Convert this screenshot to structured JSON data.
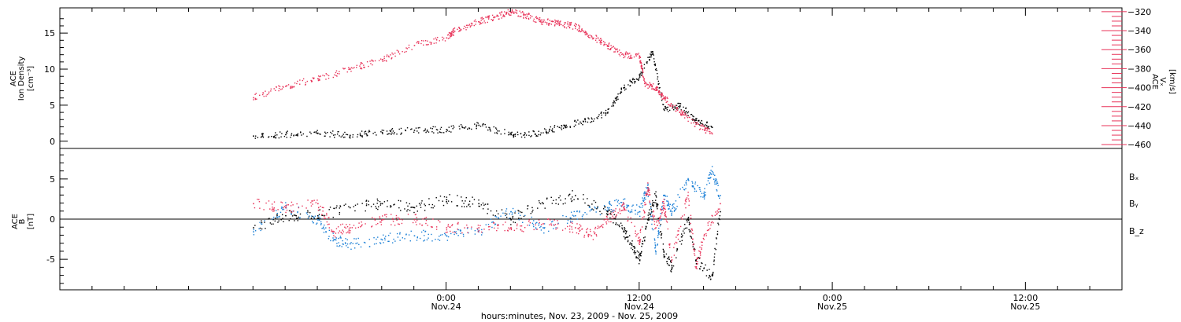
{
  "colors": {
    "black": "#000000",
    "pink": "#e8345a",
    "blue": "#1a7fd6"
  },
  "chart_data": [
    {
      "type": "scatter",
      "panel": "top",
      "left_axis": {
        "title_lines": [
          "ACE",
          "Ion Density"
        ],
        "unit": "[cm⁻³]",
        "ticks": [
          0,
          5,
          10,
          15
        ],
        "ylim": [
          -1,
          18.5
        ]
      },
      "right_axis": {
        "title_lines": [
          "ACE"
        ],
        "label": "Vₓ",
        "unit": "[km/s]",
        "ticks": [
          -320,
          -340,
          -360,
          -380,
          -400,
          -420,
          -440,
          -460
        ],
        "ylim": [
          -464,
          -316
        ],
        "color": "#e8345a"
      },
      "series": [
        {
          "axis": "left",
          "color": "#000000",
          "values": [
            [
              -12,
              0.8
            ],
            [
              -10,
              1.0
            ],
            [
              -8,
              1.2
            ],
            [
              -6,
              0.9
            ],
            [
              -4,
              1.3
            ],
            [
              -2,
              1.6
            ],
            [
              0,
              1.7
            ],
            [
              2,
              2.3
            ],
            [
              4,
              1.0
            ],
            [
              5.5,
              1.1
            ],
            [
              7,
              2.0
            ],
            [
              8.5,
              2.8
            ],
            [
              10,
              4.0
            ],
            [
              11,
              7.5
            ],
            [
              12,
              9.0
            ],
            [
              12.8,
              12.5
            ],
            [
              13.5,
              4.5
            ],
            [
              14.5,
              5.0
            ],
            [
              15.5,
              3.0
            ],
            [
              16.5,
              2.0
            ]
          ]
        },
        {
          "axis": "right",
          "color": "#e8345a",
          "values": [
            [
              -12,
              -410
            ],
            [
              -10,
              -398
            ],
            [
              -8,
              -390
            ],
            [
              -6,
              -380
            ],
            [
              -4,
              -370
            ],
            [
              -2,
              -355
            ],
            [
              0,
              -347
            ],
            [
              0.5,
              -340
            ],
            [
              2,
              -330
            ],
            [
              3,
              -325
            ],
            [
              4,
              -320
            ],
            [
              5,
              -324
            ],
            [
              6,
              -330
            ],
            [
              7,
              -332
            ],
            [
              8,
              -335
            ],
            [
              9,
              -345
            ],
            [
              10,
              -355
            ],
            [
              11,
              -365
            ],
            [
              12,
              -367
            ],
            [
              12.3,
              -395
            ],
            [
              13,
              -400
            ],
            [
              13.5,
              -410
            ],
            [
              14.5,
              -425
            ],
            [
              15.5,
              -438
            ],
            [
              16.5,
              -448
            ]
          ]
        }
      ]
    },
    {
      "type": "scatter",
      "panel": "bottom",
      "left_axis": {
        "title_lines": [
          "ACE",
          "B"
        ],
        "unit": "[nT]",
        "ticks": [
          5,
          0,
          -5
        ],
        "ylim": [
          -8.8,
          8.8
        ]
      },
      "zero_line": true,
      "series": [
        {
          "name": "Bₓ",
          "color": "#000000",
          "values": [
            [
              -12,
              -1
            ],
            [
              -10,
              0.5
            ],
            [
              -8,
              0.5
            ],
            [
              -6,
              1.5
            ],
            [
              -4,
              2.0
            ],
            [
              -2,
              1.5
            ],
            [
              0,
              2.5
            ],
            [
              2,
              2.0
            ],
            [
              4,
              0
            ],
            [
              6,
              2
            ],
            [
              8,
              3
            ],
            [
              10,
              1
            ],
            [
              11,
              -1.5
            ],
            [
              11.5,
              -3.0
            ],
            [
              12,
              -5.0
            ],
            [
              12.5,
              0
            ],
            [
              13,
              3
            ],
            [
              13.5,
              -4
            ],
            [
              14,
              -6
            ],
            [
              15,
              0
            ],
            [
              15.5,
              -5
            ],
            [
              16.5,
              -7
            ],
            [
              17,
              1
            ]
          ]
        },
        {
          "name": "Bᵧ",
          "color": "#1a7fd6",
          "values": [
            [
              -12,
              -1.5
            ],
            [
              -10,
              1.5
            ],
            [
              -8,
              0
            ],
            [
              -7,
              -2.5
            ],
            [
              -6,
              -3
            ],
            [
              -4,
              -2.5
            ],
            [
              -2,
              -2
            ],
            [
              0,
              -2
            ],
            [
              2,
              -1.5
            ],
            [
              4,
              1
            ],
            [
              6,
              -1
            ],
            [
              8,
              0.5
            ],
            [
              10,
              1.5
            ],
            [
              11,
              2
            ],
            [
              12,
              1
            ],
            [
              12.5,
              4
            ],
            [
              13,
              -4
            ],
            [
              13.5,
              3
            ],
            [
              14,
              1
            ],
            [
              15,
              5
            ],
            [
              16,
              3
            ],
            [
              16.5,
              6
            ],
            [
              17,
              3
            ]
          ]
        },
        {
          "name": "B_z",
          "color": "#e8345a",
          "values": [
            [
              -12,
              2
            ],
            [
              -10,
              1.5
            ],
            [
              -8,
              2
            ],
            [
              -7,
              -1.5
            ],
            [
              -6,
              -1
            ],
            [
              -4,
              0
            ],
            [
              -2,
              0
            ],
            [
              0,
              -1
            ],
            [
              2,
              -1
            ],
            [
              4,
              -1
            ],
            [
              6,
              -0.5
            ],
            [
              8,
              -1
            ],
            [
              9,
              -2
            ],
            [
              10,
              0
            ],
            [
              11,
              1.5
            ],
            [
              12,
              -2.5
            ],
            [
              12.5,
              4
            ],
            [
              13,
              -1
            ],
            [
              13.5,
              2
            ],
            [
              14,
              -5
            ],
            [
              15,
              3
            ],
            [
              15.5,
              -6
            ],
            [
              16,
              -2
            ],
            [
              17,
              2
            ]
          ]
        }
      ],
      "legend": [
        "Bₓ",
        "Bᵧ",
        "B_z"
      ]
    }
  ],
  "x_axis": {
    "xlim": [
      -24,
      42
    ],
    "major_ticks": [
      {
        "t": 0,
        "time": "0:00",
        "date": "Nov.24"
      },
      {
        "t": 12,
        "time": "12:00",
        "date": "Nov.24"
      },
      {
        "t": 24,
        "time": "0:00",
        "date": "Nov.25"
      },
      {
        "t": 36,
        "time": "12:00",
        "date": "Nov.25"
      }
    ],
    "minor_step": 2,
    "label": "hours:minutes, Nov. 23, 2009 - Nov. 25, 2009"
  }
}
